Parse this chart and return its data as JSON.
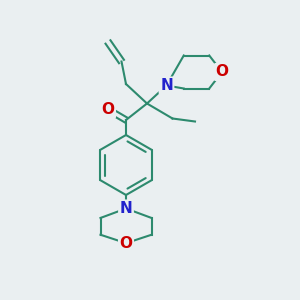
{
  "bg_color": "#eaeff1",
  "bond_color": "#2d8a6e",
  "N_color": "#2222cc",
  "O_color": "#cc0000",
  "bond_width": 1.5,
  "font_size_atom": 11,
  "xlim": [
    0,
    10
  ],
  "ylim": [
    0,
    10
  ]
}
